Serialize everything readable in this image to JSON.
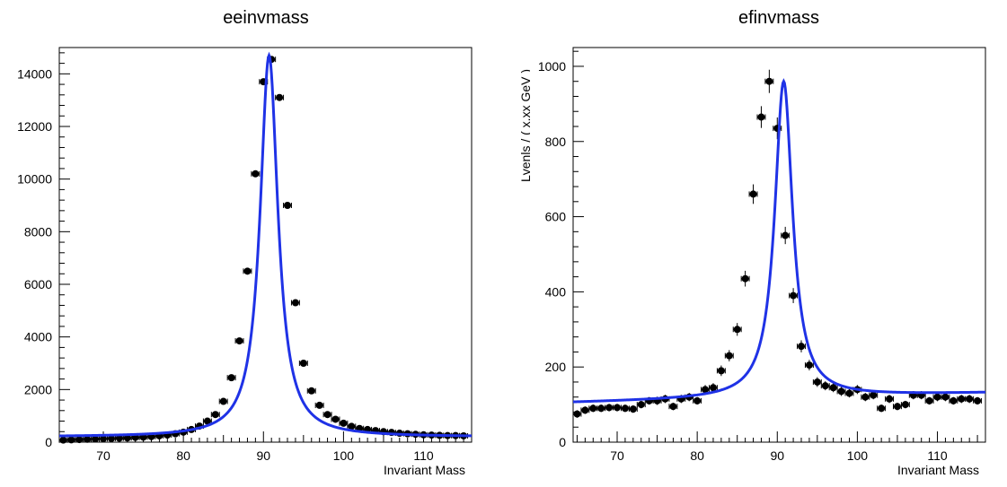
{
  "colors": {
    "fit": "#1f32e6",
    "points": "#000000",
    "axis": "#000000"
  },
  "chart_data": [
    {
      "type": "scatter",
      "title": "eeinvmass",
      "xlabel": "Invariant Mass",
      "ylabel": "",
      "xlim": [
        64.5,
        116
      ],
      "ylim": [
        0,
        15000
      ],
      "xticks": [
        70,
        80,
        90,
        100,
        110
      ],
      "yticks": [
        0,
        2000,
        4000,
        6000,
        8000,
        10000,
        12000,
        14000
      ],
      "grid": false,
      "legend": "none",
      "series": [
        {
          "kind": "points_with_errors",
          "x": [
            65,
            66,
            67,
            68,
            69,
            70,
            71,
            72,
            73,
            74,
            75,
            76,
            77,
            78,
            79,
            80,
            81,
            82,
            83,
            84,
            85,
            86,
            87,
            88,
            89,
            90,
            91,
            92,
            93,
            94,
            95,
            96,
            97,
            98,
            99,
            100,
            101,
            102,
            103,
            104,
            105,
            106,
            107,
            108,
            109,
            110,
            111,
            112,
            113,
            114,
            115
          ],
          "y": [
            80,
            90,
            100,
            110,
            120,
            130,
            140,
            150,
            160,
            180,
            190,
            210,
            240,
            270,
            320,
            380,
            480,
            610,
            800,
            1050,
            1550,
            2450,
            3850,
            6500,
            10200,
            13700,
            14550,
            13100,
            9000,
            5300,
            3000,
            1950,
            1400,
            1050,
            870,
            720,
            600,
            520,
            480,
            440,
            400,
            370,
            340,
            320,
            300,
            280,
            270,
            260,
            250,
            250,
            240
          ],
          "xerr": 0.5
        },
        {
          "kind": "fit_curve",
          "function": "breit_wigner_plus_background",
          "peak_x": 90.7,
          "peak_y": 14700,
          "width": 2.7,
          "background": [
            200,
            0
          ]
        }
      ]
    },
    {
      "type": "scatter",
      "title": "efinvmass",
      "xlabel": "Invariant Mass",
      "ylabel": "",
      "xlim": [
        64.5,
        116
      ],
      "ylim": [
        0,
        1050
      ],
      "xticks": [
        70,
        80,
        90,
        100,
        110
      ],
      "yticks": [
        0,
        200,
        400,
        600,
        800,
        1000
      ],
      "grid": false,
      "legend": "none",
      "series": [
        {
          "kind": "points_with_errors",
          "x": [
            65,
            66,
            67,
            68,
            69,
            70,
            71,
            72,
            73,
            74,
            75,
            76,
            77,
            78,
            79,
            80,
            81,
            82,
            83,
            84,
            85,
            86,
            87,
            88,
            89,
            90,
            91,
            92,
            93,
            94,
            95,
            96,
            97,
            98,
            99,
            100,
            101,
            102,
            103,
            104,
            105,
            106,
            107,
            108,
            109,
            110,
            111,
            112,
            113,
            114,
            115
          ],
          "y": [
            75,
            85,
            90,
            90,
            92,
            92,
            90,
            88,
            100,
            110,
            110,
            115,
            95,
            115,
            120,
            110,
            140,
            145,
            190,
            230,
            300,
            435,
            660,
            865,
            960,
            835,
            550,
            390,
            255,
            205,
            160,
            150,
            145,
            135,
            130,
            140,
            120,
            125,
            90,
            115,
            95,
            100,
            125,
            125,
            110,
            120,
            120,
            110,
            115,
            115,
            110
          ],
          "yerr": [
            10,
            10,
            10,
            10,
            10,
            10,
            10,
            10,
            10,
            10,
            11,
            11,
            10,
            11,
            11,
            10,
            12,
            12,
            14,
            15,
            17,
            21,
            26,
            29,
            31,
            29,
            23,
            20,
            16,
            14,
            13,
            12,
            12,
            12,
            11,
            12,
            11,
            11,
            10,
            11,
            10,
            10,
            11,
            11,
            10,
            11,
            11,
            10,
            11,
            11,
            10
          ],
          "xerr": 0.5
        },
        {
          "kind": "fit_curve",
          "function": "breit_wigner_plus_background",
          "peak_x": 90.8,
          "peak_y": 960,
          "width": 2.7,
          "background": [
            105,
            0.5
          ]
        }
      ]
    }
  ],
  "yaxis_clipped_title": "Lvenls / ( x.xx GeV )"
}
